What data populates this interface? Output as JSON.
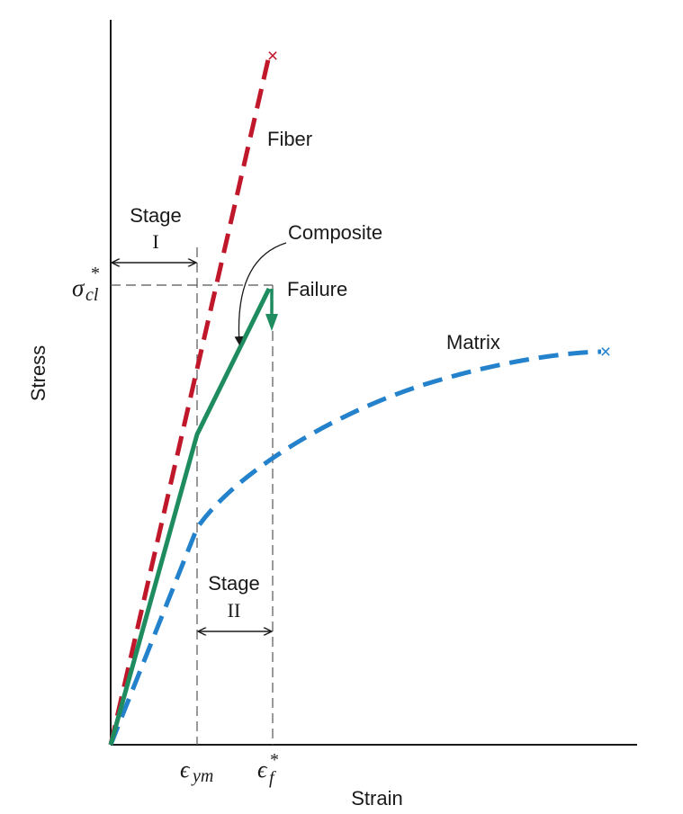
{
  "axes": {
    "y_label": "Stress",
    "x_label": "Strain",
    "y_marker": {
      "symbol": "σ",
      "subscript": "cl",
      "superscript": "*"
    },
    "x_markers": [
      {
        "symbol": "ϵ",
        "subscript": "ym",
        "superscript": ""
      },
      {
        "symbol": "ϵ",
        "subscript": "f",
        "superscript": "*"
      }
    ]
  },
  "curves": {
    "fiber": {
      "label": "Fiber",
      "color": "#c0182a",
      "end_marker": "×"
    },
    "composite": {
      "label": "Composite",
      "color": "#1e8c5f"
    },
    "matrix": {
      "label": "Matrix",
      "color": "#2382cb",
      "end_marker": "×"
    }
  },
  "annotations": {
    "failure": "Failure",
    "stage1": {
      "word": "Stage",
      "numeral": "I"
    },
    "stage2": {
      "word": "Stage",
      "numeral": "II"
    }
  }
}
